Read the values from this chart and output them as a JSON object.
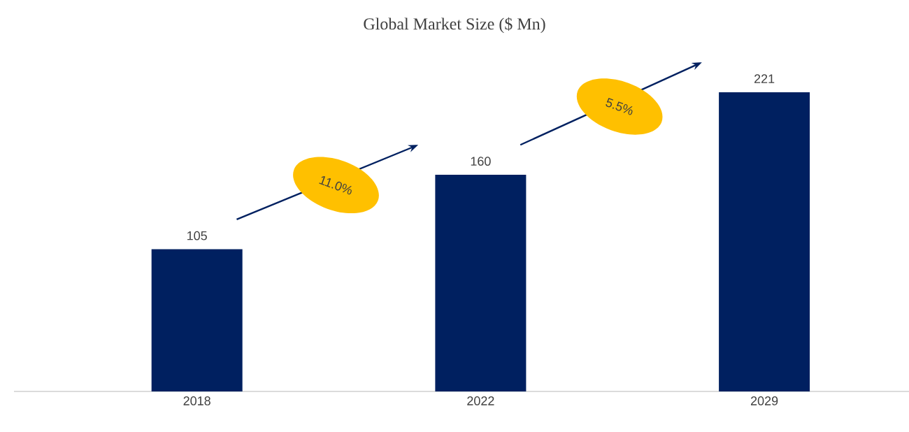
{
  "chart_data": {
    "type": "bar",
    "title": "Global Market Size ($ Mn)",
    "categories": [
      "2018",
      "2022",
      "2029"
    ],
    "values": [
      105,
      160,
      221
    ],
    "color": "#002060",
    "data_labels": true,
    "annotations": [
      "11.0%",
      "5.5%"
    ]
  }
}
